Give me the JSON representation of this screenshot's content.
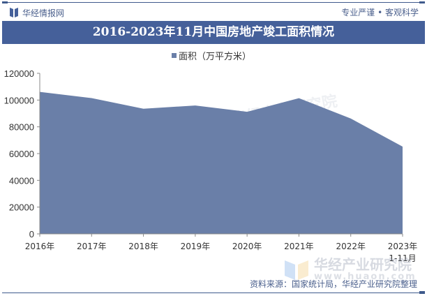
{
  "header": {
    "brand": "华经情报网",
    "slogan": "专业严谨 • 客观科学",
    "title": "2016-2023年11月中国房地产竣工面积情况"
  },
  "legend": {
    "label": "面积（万平方米）"
  },
  "footer": {
    "source": "资料来源：国家统计局，华经产业研究院整理",
    "watermark": "华经产业研究院",
    "watermark_url": "www.huaon.com"
  },
  "colors": {
    "area": "#6a7fa8",
    "title_bg": "#45609a",
    "accent": "#4a5f8c"
  },
  "chart_data": {
    "type": "area",
    "title": "2016-2023年11月中国房地产竣工面积情况",
    "categories": [
      "2016年",
      "2017年",
      "2018年",
      "2019年",
      "2020年",
      "2021年",
      "2022年",
      "2023年\n1-11月"
    ],
    "series": [
      {
        "name": "面积（万平方米）",
        "values": [
          106128,
          101486,
          93550,
          95942,
          91218,
          101412,
          86222,
          65237
        ]
      }
    ],
    "xlabel": "",
    "ylabel": "",
    "ylim": [
      0,
      120000
    ],
    "yticks": [
      0,
      20000,
      40000,
      60000,
      80000,
      100000,
      120000
    ],
    "grid": false,
    "legend_position": "top"
  }
}
